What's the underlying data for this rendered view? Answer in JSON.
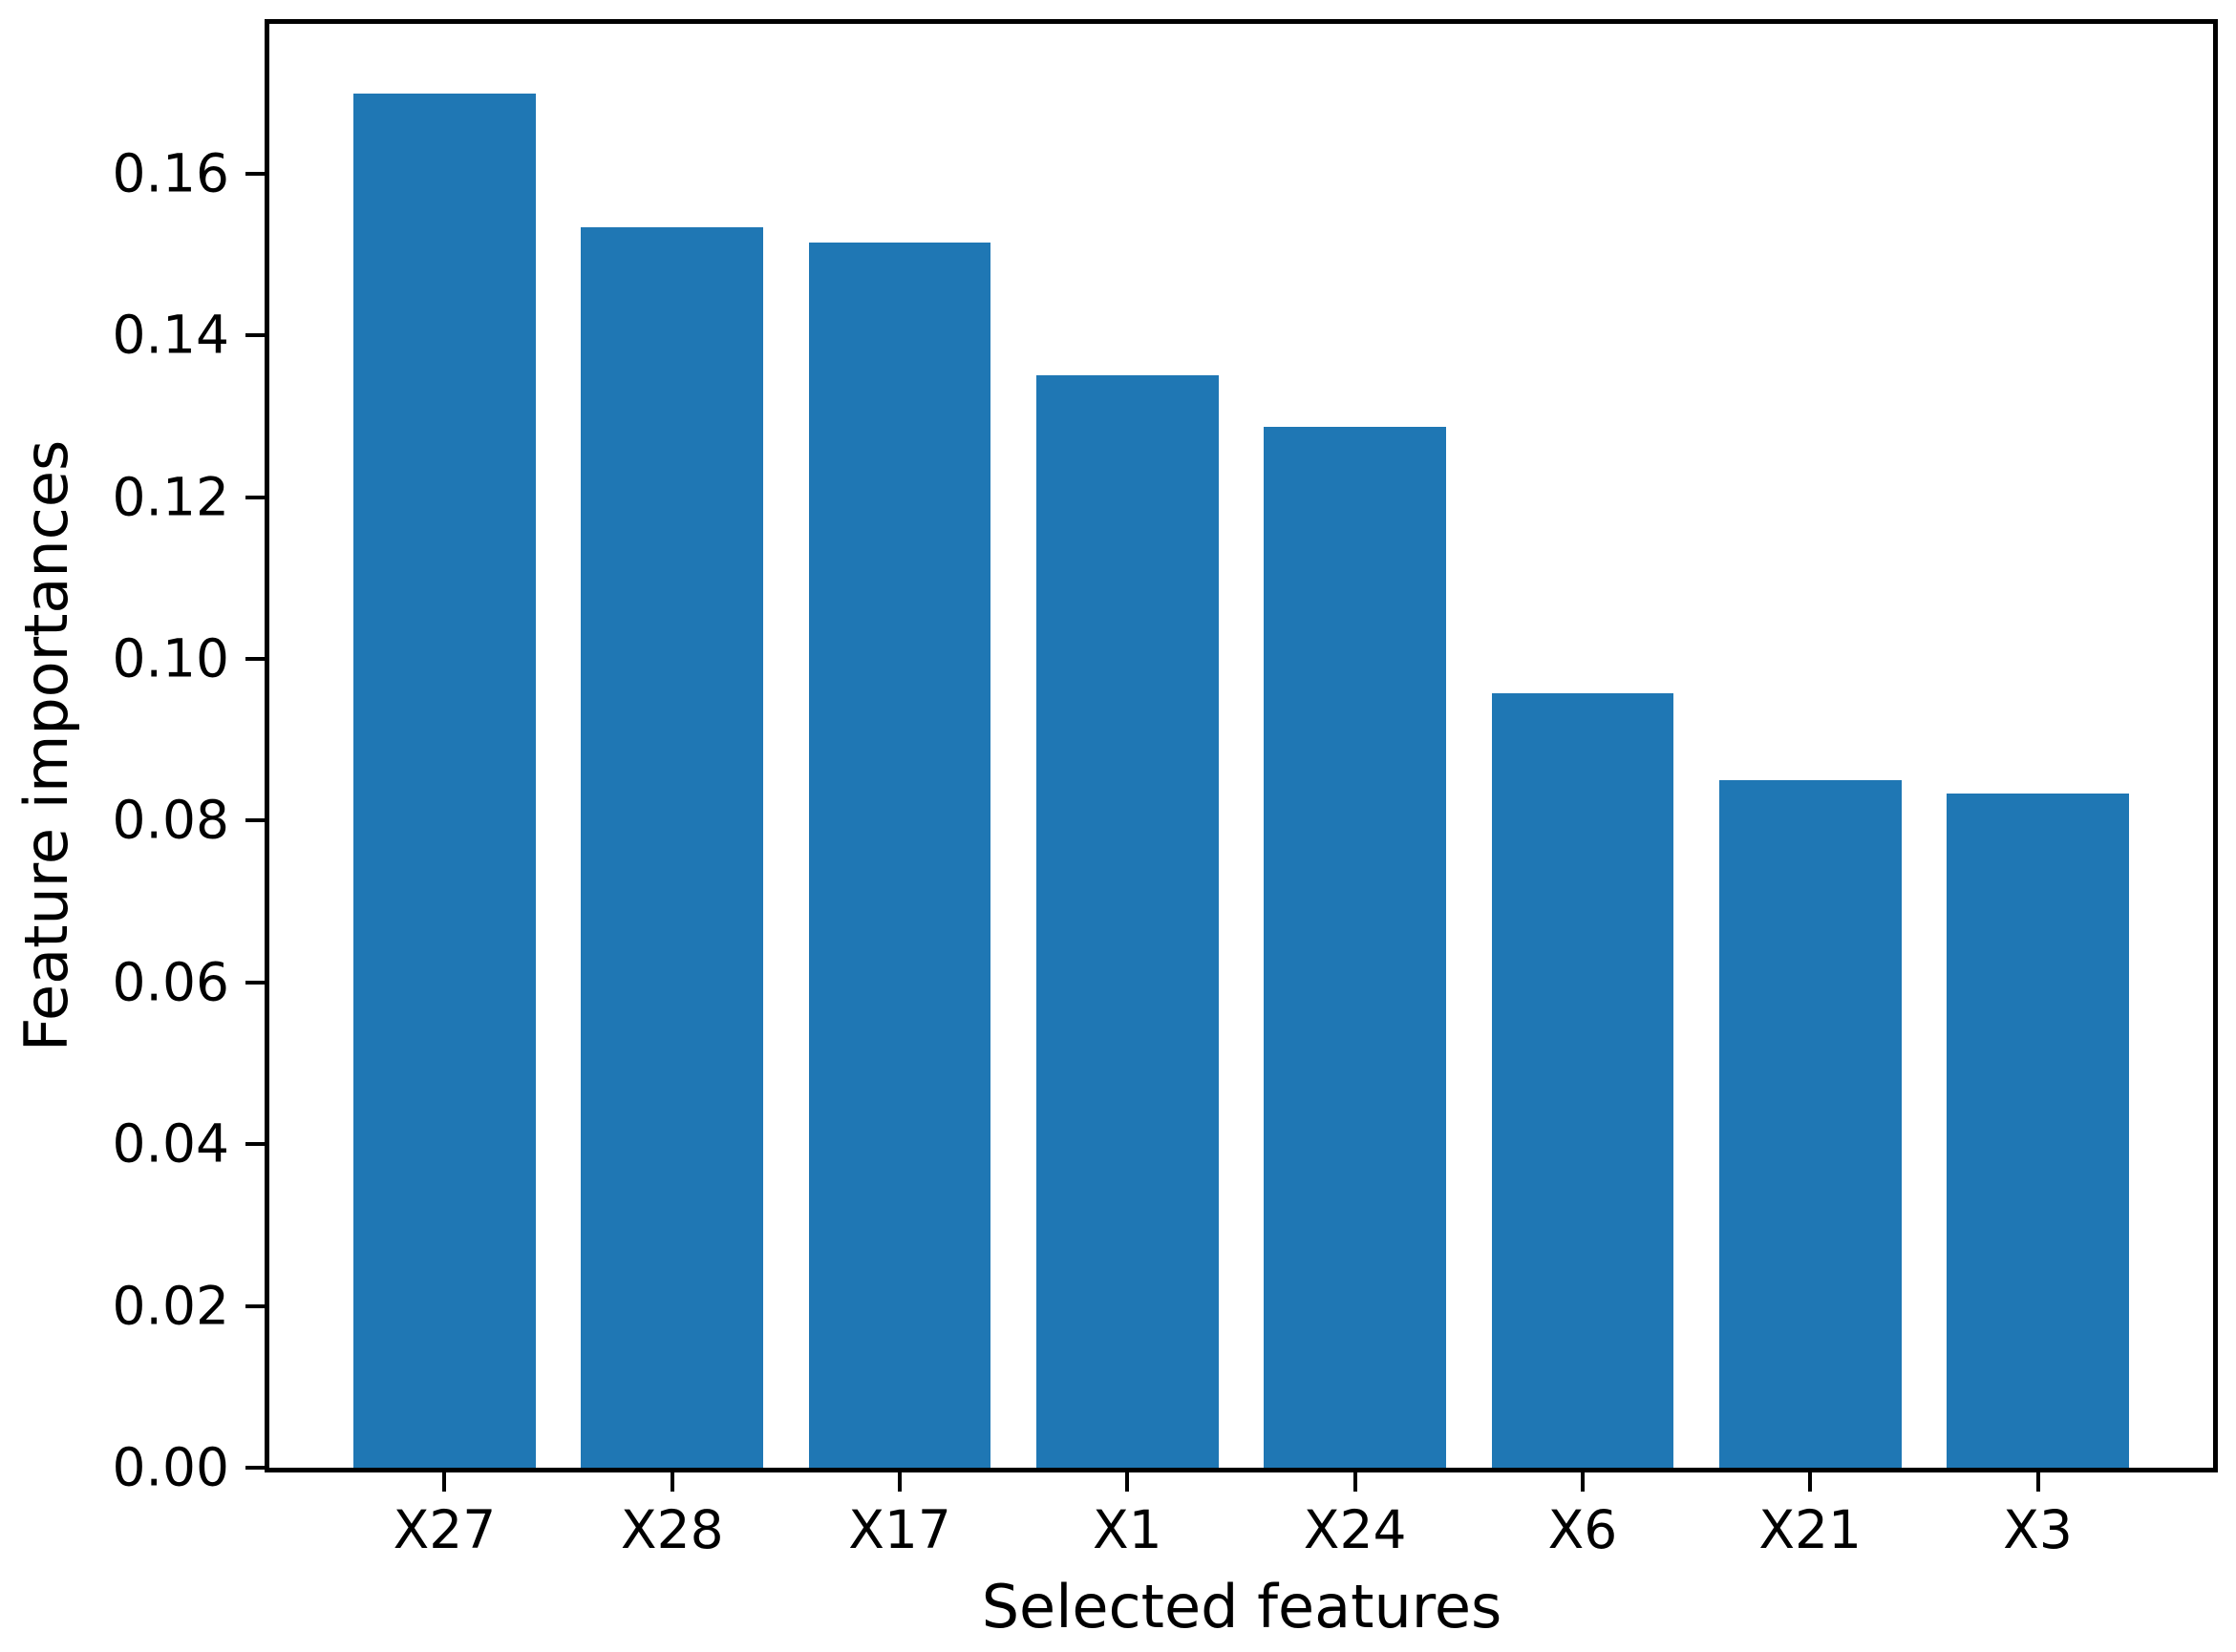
{
  "chart_data": {
    "type": "bar",
    "categories": [
      "X27",
      "X28",
      "X17",
      "X1",
      "X24",
      "X6",
      "X21",
      "X3"
    ],
    "values": [
      0.1699,
      0.1533,
      0.1515,
      0.135,
      0.1287,
      0.0958,
      0.085,
      0.0833
    ],
    "title": "",
    "xlabel": "Selected features",
    "ylabel": "Feature importances",
    "ylim": [
      0,
      0.1785
    ],
    "yticks": [
      0.0,
      0.02,
      0.04,
      0.06,
      0.08,
      0.1,
      0.12,
      0.14,
      0.16
    ],
    "ytick_labels": [
      "0.00",
      "0.02",
      "0.04",
      "0.06",
      "0.08",
      "0.10",
      "0.12",
      "0.14",
      "0.16"
    ],
    "bar_color": "#1f77b4",
    "axis_color": "#000000",
    "background_color": "#ffffff",
    "bar_width_fraction": 0.8,
    "x_edge_margin_units": 0.77,
    "grid": false,
    "legend": "none"
  }
}
